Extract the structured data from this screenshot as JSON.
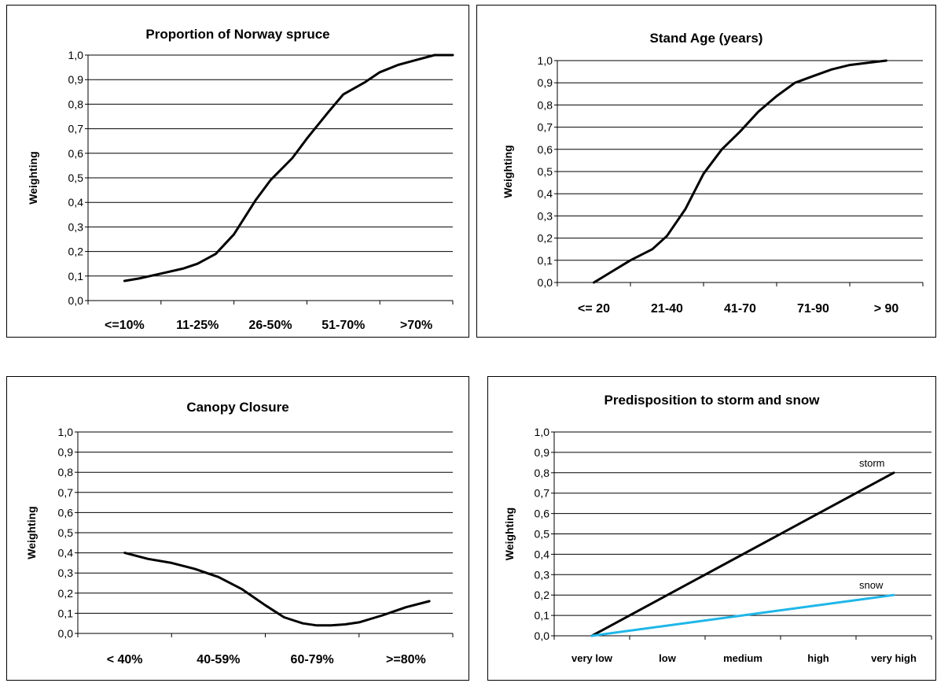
{
  "chart_data": [
    {
      "type": "line",
      "title": "Proportion of Norway spruce",
      "ylabel": "Weighting",
      "xlabel": "",
      "categories": [
        "<=10%",
        "11-25%",
        "26-50%",
        "51-70%",
        ">70%"
      ],
      "ylim": [
        0,
        1
      ],
      "yticks": [
        "0,0",
        "0,1",
        "0,2",
        "0,3",
        "0,4",
        "0,5",
        "0,6",
        "0,7",
        "0,8",
        "0,9",
        "1,0"
      ],
      "grid": true,
      "series": [
        {
          "color": "#000000",
          "x": [
            0.5,
            0.7,
            1.0,
            1.3,
            1.5,
            1.75,
            2.0,
            2.3,
            2.5,
            2.8,
            3.0,
            3.3,
            3.5,
            3.8,
            4.0,
            4.25,
            4.5,
            4.75,
            5.0
          ],
          "y": [
            0.08,
            0.09,
            0.11,
            0.13,
            0.15,
            0.19,
            0.27,
            0.41,
            0.49,
            0.58,
            0.66,
            0.77,
            0.84,
            0.89,
            0.93,
            0.96,
            0.98,
            1.0,
            1.0
          ]
        }
      ]
    },
    {
      "type": "line",
      "title": "Stand Age (years)",
      "ylabel": "Weighting",
      "xlabel": "",
      "categories": [
        "<= 20",
        "21-40",
        "41-70",
        "71-90",
        "> 90"
      ],
      "ylim": [
        0,
        1
      ],
      "yticks": [
        "0,0",
        "0,1",
        "0,2",
        "0,3",
        "0,4",
        "0,5",
        "0,6",
        "0,7",
        "0,8",
        "0,9",
        "1,0"
      ],
      "grid": true,
      "series": [
        {
          "color": "#000000",
          "x": [
            0.5,
            0.75,
            1.0,
            1.3,
            1.5,
            1.75,
            2.0,
            2.25,
            2.5,
            2.75,
            3.0,
            3.25,
            3.5,
            3.75,
            4.0,
            4.25,
            4.5
          ],
          "y": [
            0.0,
            0.05,
            0.1,
            0.15,
            0.21,
            0.33,
            0.49,
            0.6,
            0.68,
            0.77,
            0.84,
            0.9,
            0.93,
            0.96,
            0.98,
            0.99,
            1.0
          ]
        }
      ]
    },
    {
      "type": "line",
      "title": "Canopy Closure",
      "ylabel": "Weighting",
      "xlabel": "",
      "categories": [
        "< 40%",
        "40-59%",
        "60-79%",
        ">=80%"
      ],
      "ylim": [
        0,
        1
      ],
      "yticks": [
        "0,0",
        "0,1",
        "0,2",
        "0,3",
        "0,4",
        "0,5",
        "0,6",
        "0,7",
        "0,8",
        "0,9",
        "1,0"
      ],
      "grid": true,
      "series": [
        {
          "color": "#000000",
          "x": [
            0.5,
            0.75,
            1.0,
            1.25,
            1.5,
            1.75,
            2.0,
            2.2,
            2.4,
            2.55,
            2.7,
            2.85,
            3.0,
            3.25,
            3.5,
            3.75
          ],
          "y": [
            0.4,
            0.37,
            0.35,
            0.32,
            0.28,
            0.22,
            0.14,
            0.08,
            0.05,
            0.04,
            0.04,
            0.045,
            0.055,
            0.09,
            0.13,
            0.16
          ]
        }
      ]
    },
    {
      "type": "line",
      "title": "Predisposition to storm and snow",
      "ylabel": "Weighting",
      "xlabel": "",
      "categories": [
        "very low",
        "low",
        "medium",
        "high",
        "very high"
      ],
      "ylim": [
        0,
        1
      ],
      "yticks": [
        "0,0",
        "0,1",
        "0,2",
        "0,3",
        "0,4",
        "0,5",
        "0,6",
        "0,7",
        "0,8",
        "0,9",
        "1,0"
      ],
      "grid": true,
      "series": [
        {
          "name": "storm",
          "color": "#000000",
          "x": [
            0.5,
            4.5
          ],
          "y": [
            0.0,
            0.8
          ]
        },
        {
          "name": "snow",
          "color": "#1FB6E8",
          "x": [
            0.5,
            4.5
          ],
          "y": [
            0.0,
            0.2
          ]
        }
      ]
    }
  ]
}
